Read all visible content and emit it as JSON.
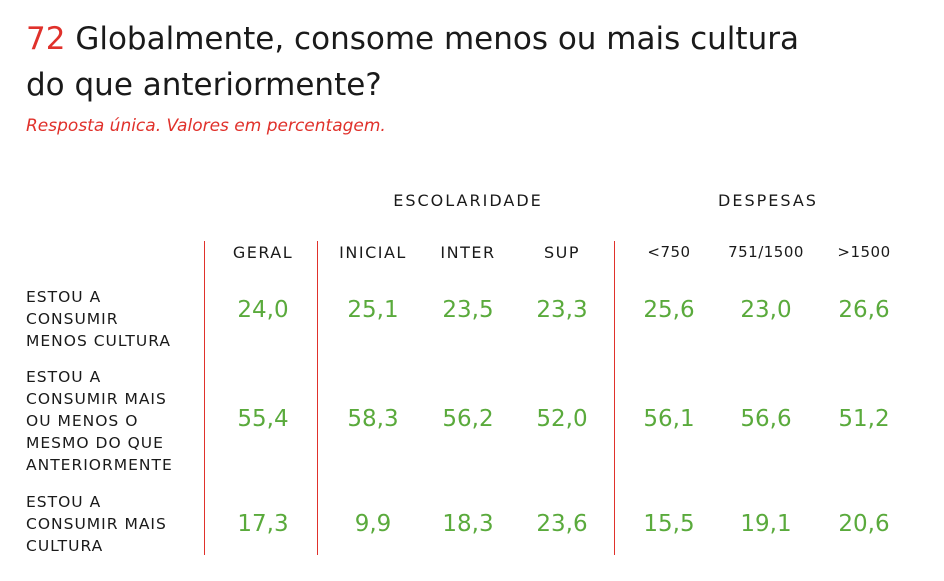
{
  "header": {
    "number": "72",
    "title": "Globalmente, consome menos ou mais cultura do que anteriormente?",
    "subtitle": "Resposta única. Valores em percentagem."
  },
  "groups": {
    "escolaridade": "ESCOLARIDADE",
    "despesas": "DESPESAS"
  },
  "columns": [
    "GERAL",
    "INICIAL",
    "INTER",
    "SUP",
    "<750",
    "751/1500",
    ">1500"
  ],
  "rows": [
    {
      "label": "ESTOU A\nCONSUMIR\nMENOS CULTURA",
      "values": [
        "24,0",
        "25,1",
        "23,5",
        "23,3",
        "25,6",
        "23,0",
        "26,6"
      ]
    },
    {
      "label": "ESTOU A\nCONSUMIR MAIS\nOU MENOS O\nMESMO DO QUE\nANTERIORMENTE",
      "values": [
        "55,4",
        "58,3",
        "56,2",
        "52,0",
        "56,1",
        "56,6",
        "51,2"
      ]
    },
    {
      "label": "ESTOU A\nCONSUMIR MAIS\nCULTURA",
      "values": [
        "17,3",
        "9,9",
        "18,3",
        "23,6",
        "15,5",
        "19,1",
        "20,6"
      ]
    }
  ],
  "colors": {
    "accent": "#e0312b",
    "value": "#5aaa3c",
    "text": "#1a1a1a"
  }
}
